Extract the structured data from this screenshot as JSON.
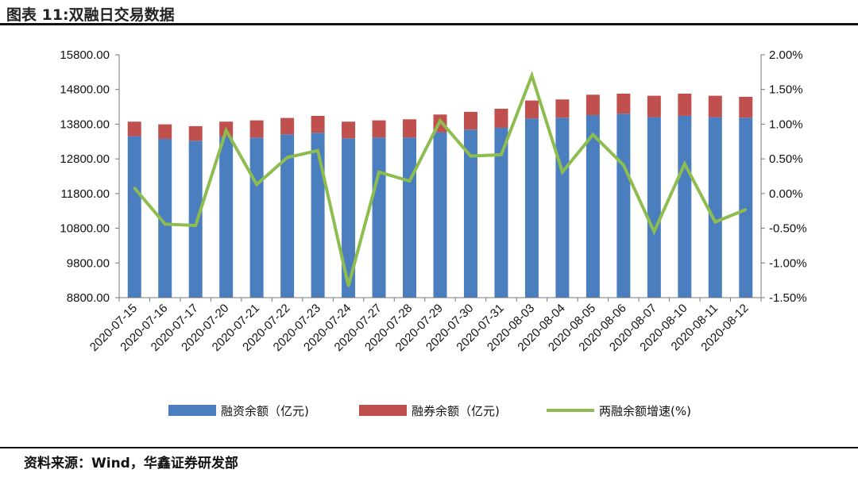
{
  "title": "图表 11:双融日交易数据",
  "source": "资料来源：Wind，华鑫证券研发部",
  "chart_data": {
    "type": "bar+line",
    "title": "",
    "categories": [
      "2020-07-15",
      "2020-07-16",
      "2020-07-17",
      "2020-07-20",
      "2020-07-21",
      "2020-07-22",
      "2020-07-23",
      "2020-07-24",
      "2020-07-27",
      "2020-07-28",
      "2020-07-29",
      "2020-07-30",
      "2020-07-31",
      "2020-08-03",
      "2020-08-04",
      "2020-08-05",
      "2020-08-06",
      "2020-08-07",
      "2020-08-10",
      "2020-08-11",
      "2020-08-12"
    ],
    "series": [
      {
        "name": "融资余额（亿元)",
        "type": "bar",
        "stacked": true,
        "axis": "left",
        "color": "#4a7ebf",
        "values": [
          13452,
          13376,
          13323,
          13440,
          13414,
          13506,
          13552,
          13391,
          13414,
          13414,
          13567,
          13643,
          13696,
          13963,
          13986,
          14062,
          14100,
          14002,
          14040,
          14002,
          13986
        ]
      },
      {
        "name": "融券余额（亿元)",
        "type": "bar",
        "stacked": true,
        "axis": "left",
        "color": "#c0504d",
        "values": [
          420,
          419,
          419,
          432,
          496,
          473,
          488,
          481,
          496,
          526,
          511,
          511,
          549,
          519,
          526,
          587,
          580,
          617,
          640,
          617,
          603
        ]
      },
      {
        "name": "两融余额增速(%)",
        "type": "line",
        "axis": "right",
        "color": "#8ebd4f",
        "values": [
          0.08,
          -0.44,
          -0.46,
          0.91,
          0.13,
          0.52,
          0.62,
          -1.33,
          0.31,
          0.18,
          1.05,
          0.54,
          0.56,
          1.7,
          0.31,
          0.85,
          0.41,
          -0.55,
          0.43,
          -0.41,
          -0.23
        ]
      }
    ],
    "left_axis": {
      "ylim": [
        8800,
        15800
      ],
      "ticks": [
        "8800.00",
        "9800.00",
        "10800.00",
        "11800.00",
        "12800.00",
        "13800.00",
        "14800.00",
        "15800.00"
      ]
    },
    "right_axis": {
      "ylim": [
        -1.5,
        2.0
      ],
      "unit": "%",
      "ticks": [
        "-1.50%",
        "-1.00%",
        "-0.50%",
        "0.00%",
        "0.50%",
        "1.00%",
        "1.50%",
        "2.00%"
      ]
    },
    "grid": false,
    "legend": "bottom"
  }
}
